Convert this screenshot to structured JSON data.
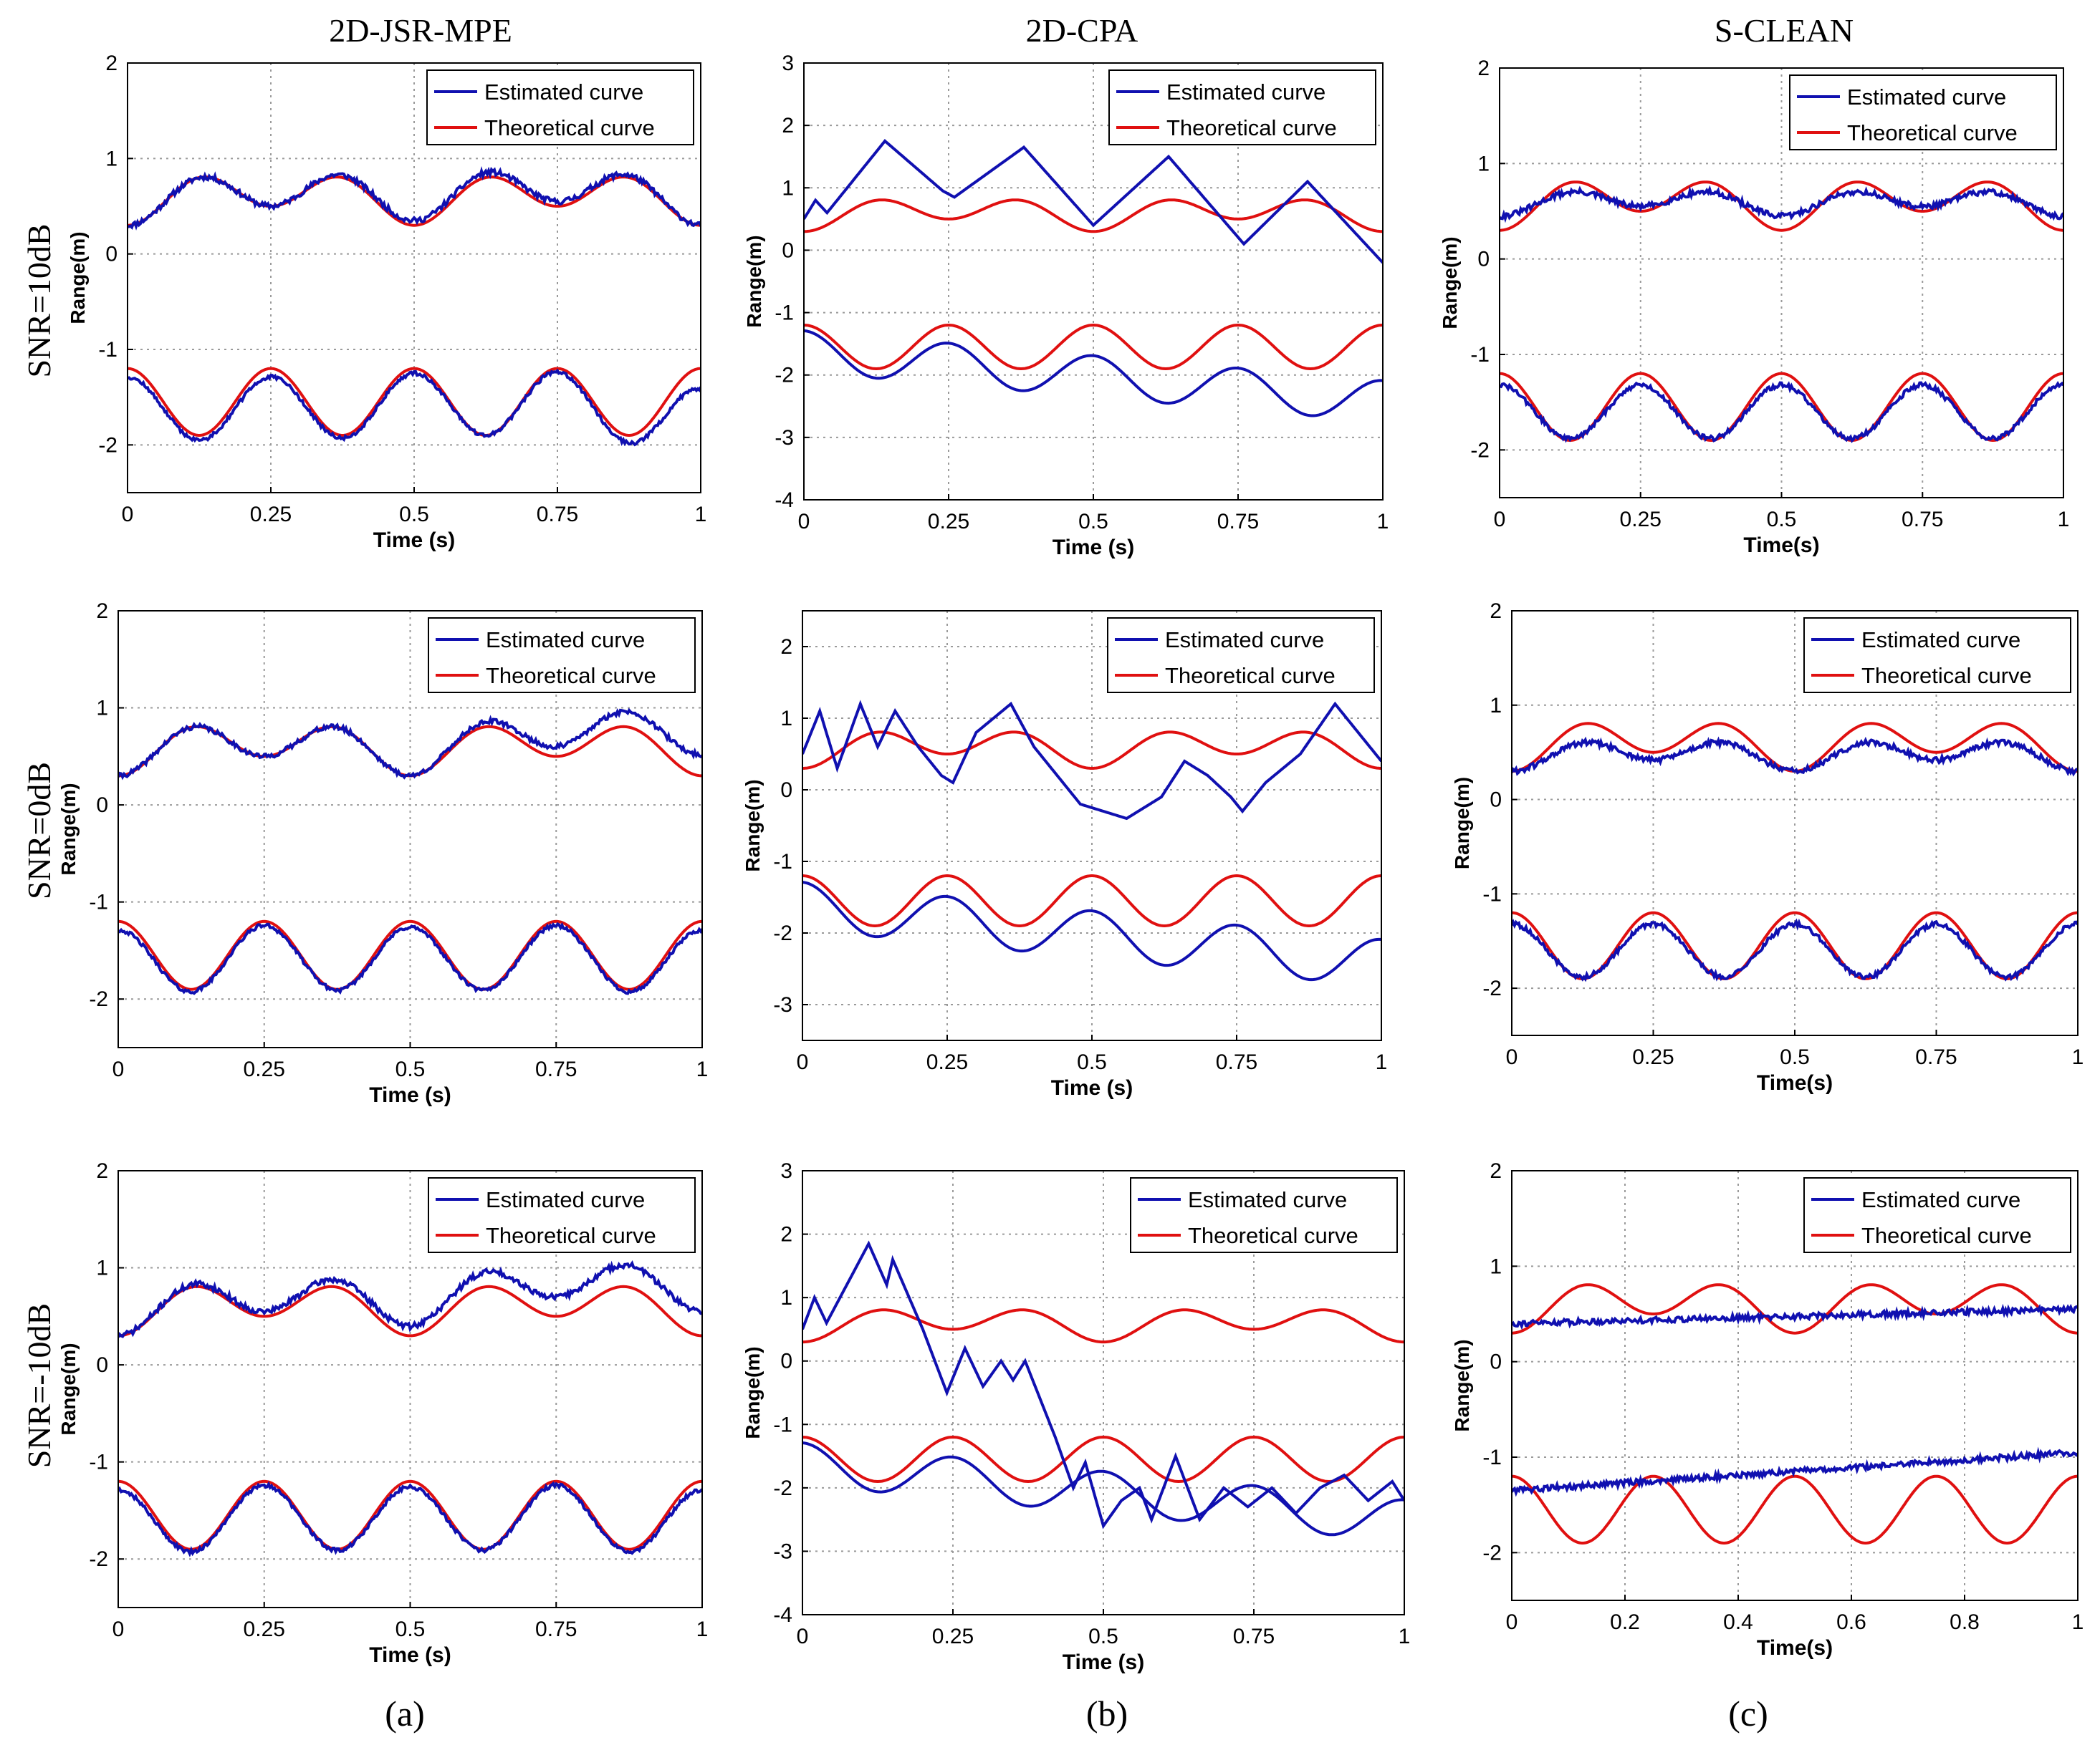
{
  "figure": {
    "column_titles": [
      "2D-JSR-MPE",
      "2D-CPA",
      "S-CLEAN"
    ],
    "row_labels": [
      "SNR=10dB",
      "SNR=0dB",
      "SNR=-10dB"
    ],
    "panel_labels": [
      "(a)",
      "(b)",
      "(c)"
    ],
    "colors": {
      "estimated": "#1010b0",
      "theoretical": "#e01010",
      "grid": "#9a9a9a",
      "axis": "#000000"
    }
  },
  "chart_data": [
    {
      "id": "r1c1",
      "type": "line",
      "title": "",
      "xlabel": "Time (s)",
      "ylabel": "Range(m)",
      "xlim": [
        0,
        1
      ],
      "ylim": [
        -2.5,
        2
      ],
      "xticks": [
        0,
        0.25,
        0.5,
        0.75,
        1
      ],
      "xtick_labels": [
        "0",
        "0.25",
        "0.5",
        "0.75",
        "1"
      ],
      "yticks": [
        -2,
        -1,
        0,
        1,
        2
      ],
      "ytick_labels": [
        "-2",
        "-1",
        "0",
        "1",
        "2"
      ],
      "grid": true,
      "legend": "top-right",
      "series": [
        {
          "name": "Estimated curve",
          "color": "#1010b0",
          "upper": {
            "offset": 0.6,
            "amp": 0.2,
            "bump": [
              0,
              0,
              0.05,
              0.05,
              0
            ],
            "noise": 0.03,
            "seed": 11
          },
          "lower": {
            "offset": -1.62,
            "amp": 0.33,
            "bump": [
              0,
              0,
              0.04,
              0.06,
              -0.12
            ],
            "noise": 0.02,
            "seed": 12
          }
        },
        {
          "name": "Theoretical curve",
          "color": "#e01010"
        }
      ]
    },
    {
      "id": "r1c2",
      "type": "line",
      "title": "",
      "xlabel": "Time (s)",
      "ylabel": "Range(m)",
      "xlim": [
        0,
        1
      ],
      "ylim": [
        -4,
        3
      ],
      "xticks": [
        0,
        0.25,
        0.5,
        0.75,
        1
      ],
      "xtick_labels": [
        "0",
        "0.25",
        "0.5",
        "0.75",
        "1"
      ],
      "yticks": [
        -4,
        -3,
        -2,
        -1,
        0,
        1,
        2,
        3
      ],
      "ytick_labels": [
        "-4",
        "-3",
        "-2",
        "-1",
        "0",
        "1",
        "2",
        "3"
      ],
      "grid": true,
      "legend": "top-right",
      "series": [
        {
          "name": "Estimated curve",
          "color": "#1010b0",
          "upper": {
            "points": [
              [
                0,
                0.5
              ],
              [
                0.02,
                0.8
              ],
              [
                0.04,
                0.6
              ],
              [
                0.14,
                1.75
              ],
              [
                0.24,
                0.95
              ],
              [
                0.26,
                0.85
              ],
              [
                0.38,
                1.65
              ],
              [
                0.5,
                0.4
              ],
              [
                0.63,
                1.5
              ],
              [
                0.76,
                0.1
              ],
              [
                0.87,
                1.1
              ],
              [
                1,
                -0.2
              ]
            ]
          },
          "lower": {
            "offset": -1.62,
            "amp": 0.33,
            "drift": -0.8,
            "noise": 0.0,
            "seed": 21
          }
        },
        {
          "name": "Theoretical curve",
          "color": "#e01010"
        }
      ]
    },
    {
      "id": "r1c3",
      "type": "line",
      "title": "",
      "xlabel": "Time(s)",
      "ylabel": "Range(m)",
      "xlim": [
        0,
        1
      ],
      "ylim": [
        -2.5,
        2
      ],
      "xticks": [
        0,
        0.25,
        0.5,
        0.75,
        1
      ],
      "xtick_labels": [
        "0",
        "0.25",
        "0.5",
        "0.75",
        "1"
      ],
      "yticks": [
        -2,
        -1,
        0,
        1,
        2
      ],
      "ytick_labels": [
        "-2",
        "-1",
        "0",
        "1",
        "2"
      ],
      "grid": true,
      "legend": "top-right",
      "series": [
        {
          "name": "Estimated curve",
          "color": "#1010b0",
          "upper": {
            "offset": 0.6,
            "amp": 0.1,
            "bump": [
              0,
              0,
              0,
              0,
              0
            ],
            "noise": 0.03,
            "seed": 31
          },
          "lower": {
            "offset": -1.6,
            "amp": 0.28,
            "bump": [
              0,
              0,
              0,
              0,
              0
            ],
            "noise": 0.025,
            "seed": 32
          }
        },
        {
          "name": "Theoretical curve",
          "color": "#e01010"
        }
      ]
    },
    {
      "id": "r2c1",
      "type": "line",
      "title": "",
      "xlabel": "Time (s)",
      "ylabel": "Range(m)",
      "xlim": [
        0,
        1
      ],
      "ylim": [
        -2.5,
        2
      ],
      "xticks": [
        0,
        0.25,
        0.5,
        0.75,
        1
      ],
      "xtick_labels": [
        "0",
        "0.25",
        "0.5",
        "0.75",
        "1"
      ],
      "yticks": [
        -2,
        -1,
        0,
        1,
        2
      ],
      "ytick_labels": [
        "-2",
        "-1",
        "0",
        "1",
        "2"
      ],
      "grid": true,
      "legend": "top-right",
      "series": [
        {
          "name": "Estimated curve",
          "color": "#1010b0",
          "upper": {
            "offset": 0.6,
            "amp": 0.2,
            "bump": [
              0,
              0,
              0,
              0.1,
              0.22
            ],
            "noise": 0.025,
            "seed": 41
          },
          "lower": {
            "offset": -1.62,
            "amp": 0.33,
            "bump": [
              0,
              0.05,
              0.03,
              0.05,
              0
            ],
            "noise": 0.02,
            "seed": 42
          }
        },
        {
          "name": "Theoretical curve",
          "color": "#e01010"
        }
      ]
    },
    {
      "id": "r2c2",
      "type": "line",
      "title": "",
      "xlabel": "Time (s)",
      "ylabel": "Range(m)",
      "xlim": [
        0,
        1
      ],
      "ylim": [
        -3.5,
        2.5
      ],
      "xticks": [
        0,
        0.25,
        0.5,
        0.75,
        1
      ],
      "xtick_labels": [
        "0",
        "0.25",
        "0.5",
        "0.75",
        "1"
      ],
      "yticks": [
        -3,
        -2,
        -1,
        0,
        1,
        2
      ],
      "ytick_labels": [
        "-3",
        "-2",
        "-1",
        "0",
        "1",
        "2"
      ],
      "grid": true,
      "legend": "top-right",
      "series": [
        {
          "name": "Estimated curve",
          "color": "#1010b0",
          "upper": {
            "points": [
              [
                0,
                0.5
              ],
              [
                0.03,
                1.1
              ],
              [
                0.06,
                0.3
              ],
              [
                0.1,
                1.2
              ],
              [
                0.13,
                0.6
              ],
              [
                0.16,
                1.1
              ],
              [
                0.2,
                0.6
              ],
              [
                0.24,
                0.2
              ],
              [
                0.26,
                0.1
              ],
              [
                0.3,
                0.8
              ],
              [
                0.36,
                1.2
              ],
              [
                0.4,
                0.6
              ],
              [
                0.44,
                0.2
              ],
              [
                0.48,
                -0.2
              ],
              [
                0.52,
                -0.3
              ],
              [
                0.56,
                -0.4
              ],
              [
                0.62,
                -0.1
              ],
              [
                0.66,
                0.4
              ],
              [
                0.7,
                0.2
              ],
              [
                0.74,
                -0.1
              ],
              [
                0.76,
                -0.3
              ],
              [
                0.8,
                0.1
              ],
              [
                0.86,
                0.5
              ],
              [
                0.92,
                1.2
              ],
              [
                0.96,
                0.8
              ],
              [
                1,
                0.4
              ]
            ]
          },
          "lower": {
            "offset": -1.62,
            "amp": 0.33,
            "drift": -0.8,
            "noise": 0.0,
            "seed": 51
          }
        },
        {
          "name": "Theoretical curve",
          "color": "#e01010"
        }
      ]
    },
    {
      "id": "r2c3",
      "type": "line",
      "title": "",
      "xlabel": "Time(s)",
      "ylabel": "Range(m)",
      "xlim": [
        0,
        1
      ],
      "ylim": [
        -2.5,
        2
      ],
      "xticks": [
        0,
        0.25,
        0.5,
        0.75,
        1
      ],
      "xtick_labels": [
        "0",
        "0.25",
        "0.5",
        "0.75",
        "1"
      ],
      "yticks": [
        -2,
        -1,
        0,
        1,
        2
      ],
      "ytick_labels": [
        "-2",
        "-1",
        "0",
        "1",
        "2"
      ],
      "grid": true,
      "legend": "top-right",
      "series": [
        {
          "name": "Estimated curve",
          "color": "#1010b0",
          "upper": {
            "offset": 0.48,
            "amp": 0.12,
            "bump": [
              0,
              0,
              0,
              0,
              0
            ],
            "noise": 0.03,
            "seed": 61
          },
          "lower": {
            "offset": -1.6,
            "amp": 0.28,
            "bump": [
              0,
              0,
              0,
              0,
              0
            ],
            "noise": 0.025,
            "seed": 62
          }
        },
        {
          "name": "Theoretical curve",
          "color": "#e01010"
        }
      ]
    },
    {
      "id": "r3c1",
      "type": "line",
      "title": "",
      "xlabel": "Time (s)",
      "ylabel": "Range(m)",
      "xlim": [
        0,
        1
      ],
      "ylim": [
        -2.5,
        2
      ],
      "xticks": [
        0,
        0.25,
        0.5,
        0.75,
        1
      ],
      "xtick_labels": [
        "0",
        "0.25",
        "0.5",
        "0.75",
        "1"
      ],
      "yticks": [
        -2,
        -1,
        0,
        1,
        2
      ],
      "ytick_labels": [
        "-2",
        "-1",
        "0",
        "1",
        "2"
      ],
      "grid": true,
      "legend": "top-right",
      "series": [
        {
          "name": "Estimated curve",
          "color": "#1010b0",
          "upper": {
            "offset": 0.6,
            "amp": 0.2,
            "bump": [
              0,
              0.05,
              0.1,
              0.2,
              0.25
            ],
            "noise": 0.03,
            "seed": 71
          },
          "lower": {
            "offset": -1.62,
            "amp": 0.33,
            "bump": [
              0,
              0.05,
              0.03,
              0.05,
              0
            ],
            "noise": 0.02,
            "seed": 72
          }
        },
        {
          "name": "Theoretical curve",
          "color": "#e01010"
        }
      ]
    },
    {
      "id": "r3c2",
      "type": "line",
      "title": "",
      "xlabel": "Time (s)",
      "ylabel": "Range(m)",
      "xlim": [
        0,
        1
      ],
      "ylim": [
        -4,
        3
      ],
      "xticks": [
        0,
        0.25,
        0.5,
        0.75,
        1
      ],
      "xtick_labels": [
        "0",
        "0.25",
        "0.5",
        "0.75",
        "1"
      ],
      "yticks": [
        -4,
        -3,
        -2,
        -1,
        0,
        1,
        2,
        3
      ],
      "ytick_labels": [
        "-4",
        "-3",
        "-2",
        "-1",
        "0",
        "1",
        "2",
        "3"
      ],
      "grid": true,
      "legend": "top-right",
      "series": [
        {
          "name": "Estimated curve",
          "color": "#1010b0",
          "upper": {
            "points": [
              [
                0,
                0.5
              ],
              [
                0.02,
                1.0
              ],
              [
                0.04,
                0.6
              ],
              [
                0.11,
                1.85
              ],
              [
                0.14,
                1.2
              ],
              [
                0.15,
                1.6
              ],
              [
                0.2,
                0.5
              ],
              [
                0.24,
                -0.5
              ],
              [
                0.27,
                0.2
              ],
              [
                0.3,
                -0.4
              ],
              [
                0.33,
                0.0
              ],
              [
                0.35,
                -0.3
              ],
              [
                0.37,
                0.0
              ],
              [
                0.42,
                -1.2
              ],
              [
                0.45,
                -2.0
              ],
              [
                0.47,
                -1.6
              ],
              [
                0.5,
                -2.6
              ],
              [
                0.53,
                -2.2
              ],
              [
                0.56,
                -2.0
              ],
              [
                0.58,
                -2.5
              ],
              [
                0.62,
                -1.5
              ],
              [
                0.66,
                -2.5
              ],
              [
                0.7,
                -2.0
              ],
              [
                0.74,
                -2.3
              ],
              [
                0.78,
                -2.0
              ],
              [
                0.82,
                -2.4
              ],
              [
                0.86,
                -2.0
              ],
              [
                0.9,
                -1.8
              ],
              [
                0.94,
                -2.2
              ],
              [
                0.98,
                -1.9
              ],
              [
                1,
                -2.2
              ]
            ]
          },
          "lower": {
            "offset": -1.62,
            "amp": 0.33,
            "drift": -0.9,
            "noise": 0.0,
            "seed": 81
          }
        },
        {
          "name": "Theoretical curve",
          "color": "#e01010"
        }
      ]
    },
    {
      "id": "r3c3",
      "type": "line",
      "title": "",
      "xlabel": "Time(s)",
      "ylabel": "Range(m)",
      "xlim": [
        0,
        1
      ],
      "ylim": [
        -2.5,
        2
      ],
      "xticks": [
        0,
        0.2,
        0.4,
        0.6,
        0.8,
        1
      ],
      "xtick_labels": [
        "0",
        "0.2",
        "0.4",
        "0.6",
        "0.8",
        "1"
      ],
      "yticks": [
        -2,
        -1,
        0,
        1,
        2
      ],
      "ytick_labels": [
        "-2",
        "-1",
        "0",
        "1",
        "2"
      ],
      "grid": true,
      "legend": "top-right",
      "series": [
        {
          "name": "Estimated curve",
          "color": "#1010b0",
          "upper": {
            "offset": 0.4,
            "amp": 0.0,
            "drift": 0.15,
            "noise": 0.03,
            "seed": 91
          },
          "lower": {
            "offset": -1.35,
            "amp": 0.0,
            "drift": 0.4,
            "noise": 0.03,
            "seed": 92
          }
        },
        {
          "name": "Theoretical curve",
          "color": "#e01010"
        }
      ]
    }
  ]
}
